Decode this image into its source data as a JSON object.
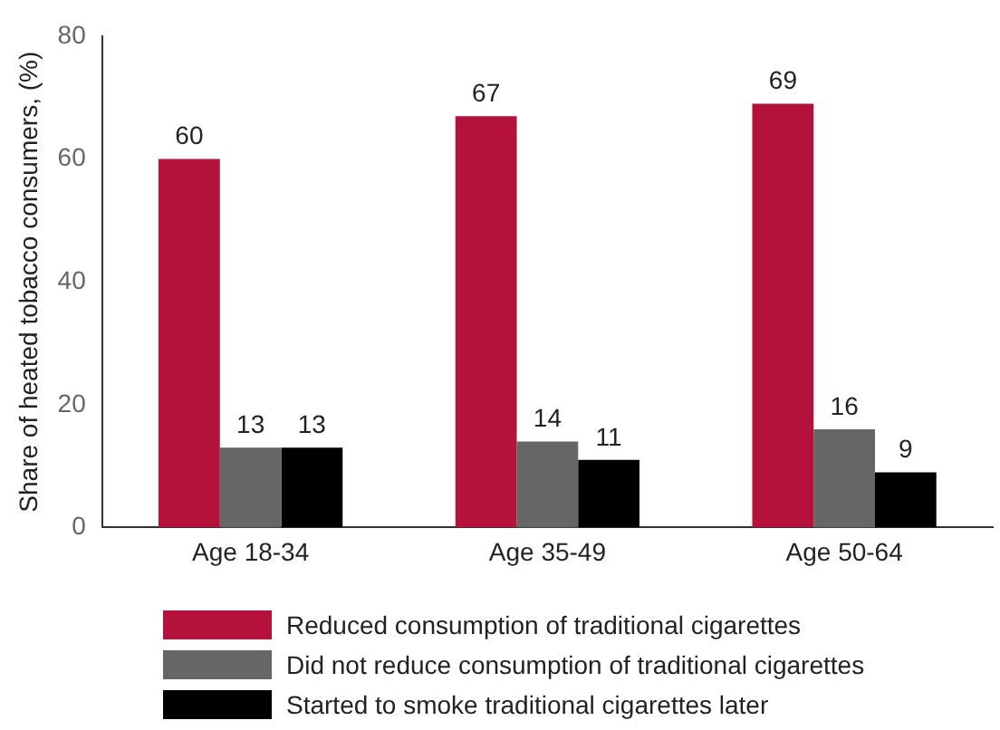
{
  "chart_data": {
    "type": "bar",
    "ylabel": "Share of heated tobacco consumers, (%)",
    "categories": [
      "Age 18-34",
      "Age 35-49",
      "Age 50-64"
    ],
    "series": [
      {
        "name": "Reduced consumption of traditional cigarettes",
        "color": "#b5123b",
        "values": [
          60,
          67,
          69
        ]
      },
      {
        "name": "Did not reduce consumption of traditional cigarettes",
        "color": "#666666",
        "values": [
          13,
          14,
          16
        ]
      },
      {
        "name": "Started to smoke traditional cigarettes later",
        "color": "#000000",
        "values": [
          13,
          11,
          9
        ]
      }
    ],
    "ylim": [
      0,
      80
    ],
    "yticks": [
      0,
      20,
      40,
      60,
      80
    ],
    "grid": false,
    "legend": "bottom",
    "data_labels": true
  }
}
